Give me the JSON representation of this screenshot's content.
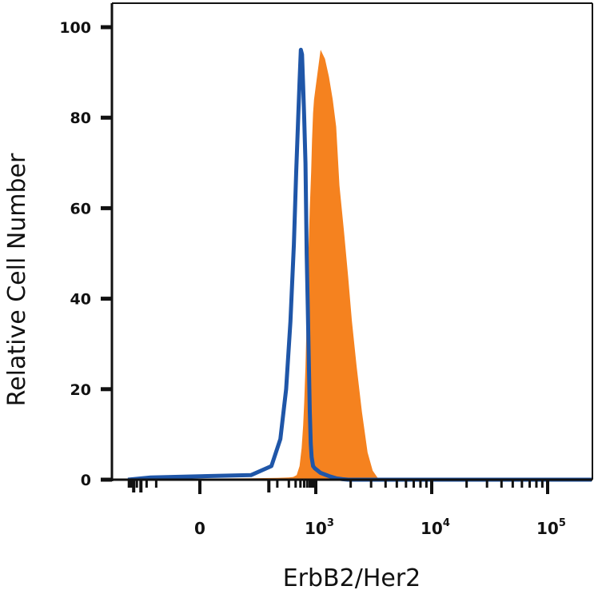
{
  "chart_data": {
    "type": "area",
    "xlabel": "ErbB2/Her2",
    "ylabel": "Relative Cell Number",
    "ylim": [
      0,
      100
    ],
    "y_ticks": [
      "0",
      "20",
      "40",
      "60",
      "80",
      "100"
    ],
    "x_scale": "biexponential",
    "x_ticks": [
      {
        "base": "0",
        "exp": ""
      },
      {
        "base": "10",
        "exp": "3"
      },
      {
        "base": "10",
        "exp": "4"
      },
      {
        "base": "10",
        "exp": "5"
      }
    ],
    "colors": {
      "blue_outline": "#1f56a8",
      "orange_fill": "#f5821f",
      "axis": "#111111"
    },
    "series": [
      {
        "style": "outline",
        "color": "#1f56a8",
        "points": [
          [
            -150,
            0
          ],
          [
            -30,
            0.5
          ],
          [
            20,
            1
          ],
          [
            70,
            3
          ],
          [
            120,
            9
          ],
          [
            170,
            20
          ],
          [
            220,
            35
          ],
          [
            270,
            52
          ],
          [
            310,
            68
          ],
          [
            350,
            80
          ],
          [
            380,
            88
          ],
          [
            410,
            95
          ],
          [
            440,
            94
          ],
          [
            470,
            87
          ],
          [
            500,
            80
          ],
          [
            540,
            70
          ],
          [
            580,
            50
          ],
          [
            620,
            38
          ],
          [
            660,
            26
          ],
          [
            700,
            15
          ],
          [
            740,
            8
          ],
          [
            780,
            5
          ],
          [
            850,
            3
          ],
          [
            950,
            2.5
          ],
          [
            1100,
            1.5
          ],
          [
            1300,
            0.8
          ],
          [
            1500,
            0.3
          ],
          [
            1700,
            0.1
          ],
          [
            1900,
            0
          ],
          [
            10000,
            0
          ],
          [
            200000,
            0
          ]
        ]
      },
      {
        "style": "filled",
        "color": "#f5821f",
        "points": [
          [
            -150,
            0
          ],
          [
            -50,
            0.2
          ],
          [
            20,
            0.3
          ],
          [
            100,
            0.4
          ],
          [
            200,
            0.5
          ],
          [
            260,
            0.6
          ],
          [
            320,
            1
          ],
          [
            380,
            3
          ],
          [
            430,
            7
          ],
          [
            470,
            12
          ],
          [
            500,
            17
          ],
          [
            540,
            25
          ],
          [
            580,
            35
          ],
          [
            620,
            45
          ],
          [
            660,
            53
          ],
          [
            700,
            60
          ],
          [
            760,
            68
          ],
          [
            800,
            75
          ],
          [
            850,
            81
          ],
          [
            900,
            84
          ],
          [
            1000,
            87
          ],
          [
            1100,
            95
          ],
          [
            1200,
            93
          ],
          [
            1300,
            89
          ],
          [
            1400,
            84
          ],
          [
            1500,
            78
          ],
          [
            1600,
            65
          ],
          [
            1750,
            55
          ],
          [
            1900,
            45
          ],
          [
            2050,
            35
          ],
          [
            2250,
            25
          ],
          [
            2500,
            15
          ],
          [
            2800,
            6
          ],
          [
            3100,
            2
          ],
          [
            3400,
            0.5
          ],
          [
            3700,
            0
          ],
          [
            200000,
            0
          ]
        ]
      }
    ]
  }
}
